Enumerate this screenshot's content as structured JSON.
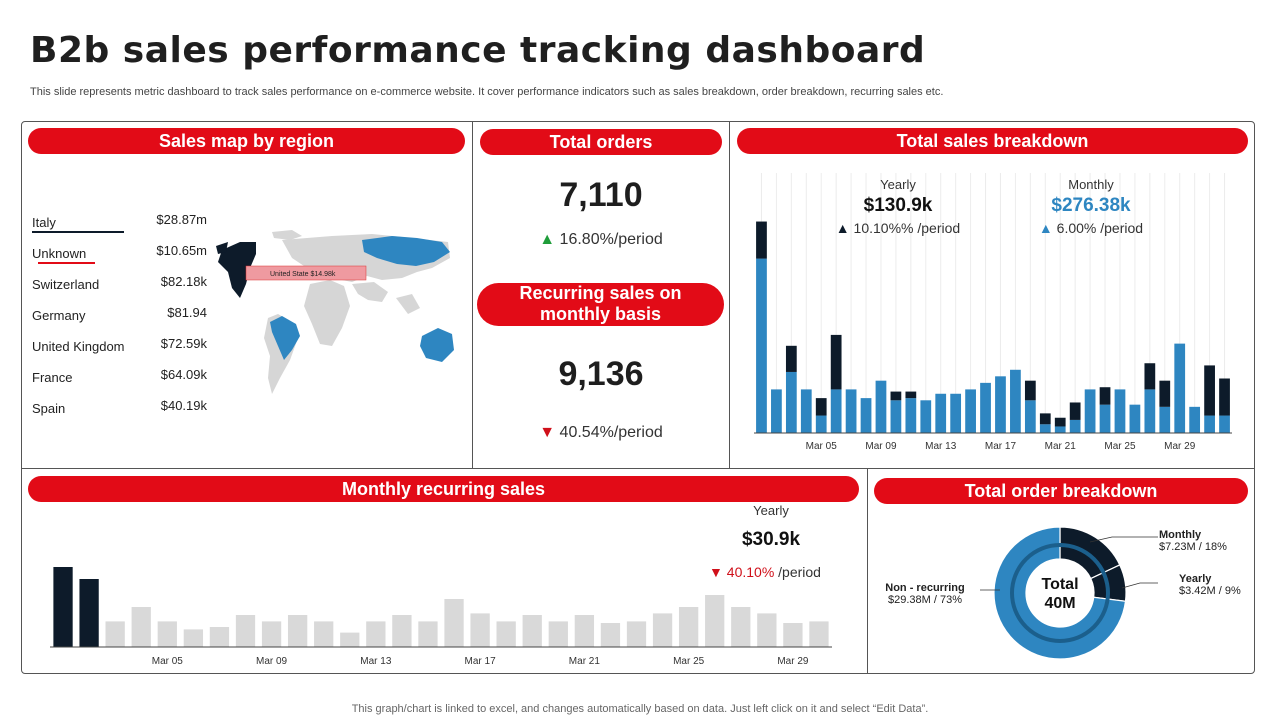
{
  "header": {
    "title": "B2b sales performance tracking dashboard",
    "subtitle": "This slide represents metric dashboard to track sales performance on e-commerce website. It cover performance indicators such as sales breakdown, order breakdown, recurring sales etc."
  },
  "footer": "This graph/chart is linked to excel,  and changes automatically based on data. Just left click on it and select “Edit Data”.",
  "sales_map": {
    "title": "Sales map by region",
    "regions": [
      {
        "name": "Italy",
        "value": "$28.87m"
      },
      {
        "name": "Unknown",
        "value": "$10.65m"
      },
      {
        "name": "Switzerland",
        "value": "$82.18k"
      },
      {
        "name": "Germany",
        "value": "$81.94"
      },
      {
        "name": "United Kingdom",
        "value": "$72.59k"
      },
      {
        "name": "France",
        "value": "$64.09k"
      },
      {
        "name": "Spain",
        "value": "$40.19k"
      }
    ],
    "map_tooltip": "United State $14.98k"
  },
  "total_orders": {
    "title": "Total orders",
    "value": "7,110",
    "delta": "16.80%/period"
  },
  "recurring": {
    "title_line1": "Recurring sales on",
    "title_line2": "monthly basis",
    "value": "9,136",
    "delta": "40.54%/period"
  },
  "sales_breakdown": {
    "title": "Total sales breakdown",
    "yearly_label": "Yearly",
    "yearly_value": "$130.9k",
    "yearly_delta": "10.10%% /period",
    "monthly_label": "Monthly",
    "monthly_value": "$276.38k",
    "monthly_delta": "6.00% /period"
  },
  "monthly_recurring": {
    "title": "Monthly recurring sales",
    "yearly_label": "Yearly",
    "yearly_value": "$30.9k",
    "delta_pct": "40.10%",
    "delta_suffix": " /period"
  },
  "order_breakdown": {
    "title": "Total order breakdown",
    "center_line1": "Total",
    "center_line2": "40M",
    "monthly_label": "Monthly",
    "monthly_value": "$7.23M / 18%",
    "yearly_label": "Yearly",
    "yearly_value": "$3.42M / 9%",
    "nonrec_label": "Non - recurring",
    "nonrec_value": "$29.38M / 73%"
  },
  "colors": {
    "accent": "#e20b17",
    "blue": "#2e86c1",
    "navy": "#0d1b2a",
    "grey": "#d9d9d9"
  },
  "chart_data": [
    {
      "type": "bar",
      "title": "Total sales breakdown",
      "x_ticks": [
        "Mar 05",
        "Mar 09",
        "Mar 13",
        "Mar 17",
        "Mar 21",
        "Mar 25",
        "Mar 29"
      ],
      "ylim": [
        0,
        100
      ],
      "series": [
        {
          "name": "Blue",
          "values": [
            80,
            20,
            28,
            20,
            8,
            20,
            20,
            16,
            24,
            15,
            16,
            15,
            18,
            18,
            20,
            23,
            26,
            29,
            15,
            4,
            3,
            6,
            20,
            13,
            20,
            13,
            20,
            12,
            41,
            12,
            8,
            8
          ]
        },
        {
          "name": "Navy",
          "values": [
            17,
            0,
            12,
            0,
            8,
            25,
            0,
            0,
            0,
            4,
            3,
            0,
            0,
            0,
            0,
            0,
            0,
            0,
            9,
            5,
            4,
            8,
            0,
            8,
            0,
            0,
            12,
            12,
            0,
            0,
            23,
            17
          ]
        }
      ]
    },
    {
      "type": "bar",
      "title": "Monthly recurring sales",
      "x_ticks": [
        "Mar 05",
        "Mar 09",
        "Mar 13",
        "Mar 17",
        "Mar 21",
        "Mar 25",
        "Mar 29"
      ],
      "ylim": [
        0,
        100
      ],
      "highlight_count": 2,
      "values": [
        100,
        85,
        32,
        50,
        32,
        22,
        25,
        40,
        32,
        40,
        32,
        18,
        32,
        40,
        32,
        60,
        42,
        32,
        40,
        32,
        40,
        30,
        32,
        42,
        50,
        65,
        50,
        42,
        30,
        32
      ]
    },
    {
      "type": "pie",
      "title": "Total order breakdown",
      "categories": [
        "Monthly",
        "Yearly",
        "Non - recurring"
      ],
      "values": [
        18,
        9,
        73
      ]
    }
  ]
}
